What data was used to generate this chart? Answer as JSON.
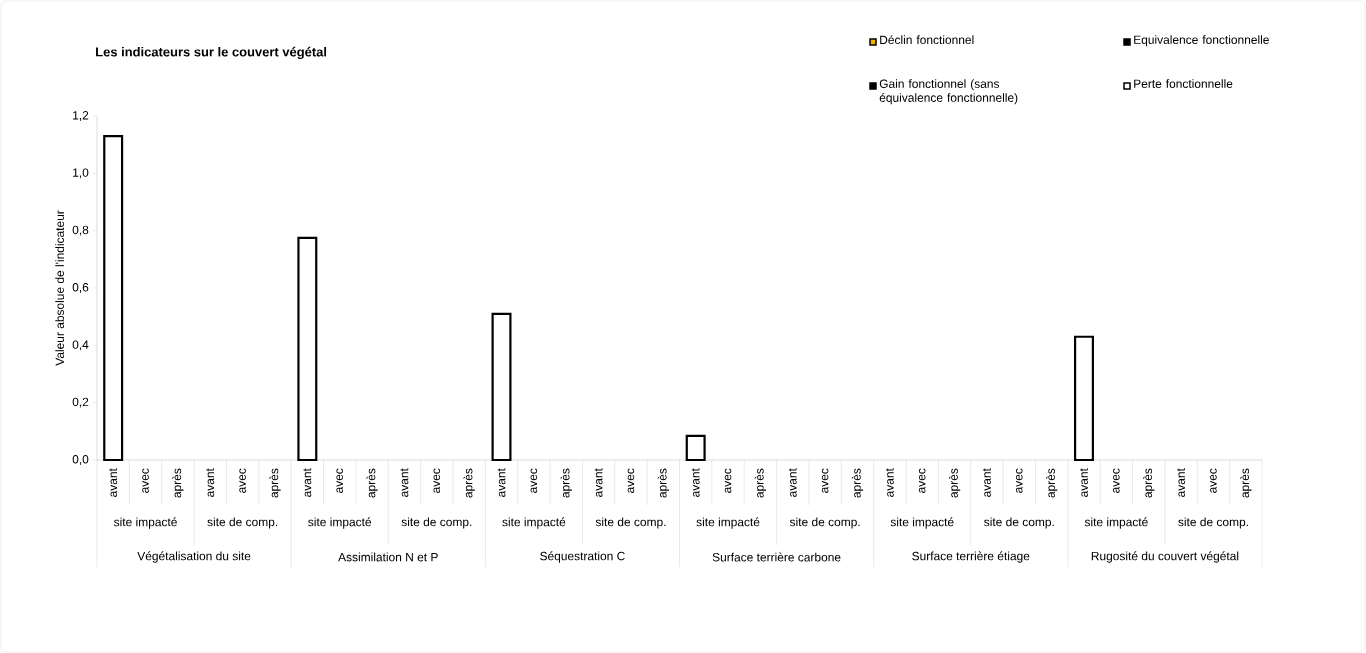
{
  "chart_data": {
    "type": "bar",
    "title": "Les indicateurs sur le couvert végétal",
    "ylabel": "Valeur absolue de l'indicateur",
    "categories": [
      "avant",
      "avec",
      "après",
      "avant",
      "avec",
      "après",
      "avant",
      "avec",
      "après",
      "avant",
      "avec",
      "après",
      "avant",
      "avec",
      "après",
      "avant",
      "avec",
      "après",
      "avant",
      "avec",
      "après",
      "avant",
      "avec",
      "après",
      "avant",
      "avec",
      "après",
      "avant",
      "avec",
      "après",
      "avant",
      "avec",
      "après",
      "avant",
      "avec",
      "après"
    ],
    "annotations": [
      "site impacté",
      "site de comp.",
      "site impacté",
      "site de comp.",
      "site impacté",
      "site de comp.",
      "site impacté",
      "site de comp.",
      "site impacté",
      "site de comp.",
      "site impacté",
      "site de comp.",
      "Végétalisation du site",
      "Assimilation N et P",
      "Séquestration C",
      "Surface terrière carbone",
      "Surface terrière étiage",
      "Rugosité du couvert végétal"
    ],
    "series": [
      {
        "name": "Déclin fonctionnel",
        "color": "#f0b400",
        "values": [
          null,
          null,
          null,
          null,
          null,
          null,
          null,
          null,
          null,
          null,
          null,
          null,
          null,
          null,
          null,
          null,
          null,
          null,
          null,
          null,
          null,
          null,
          null,
          null,
          null,
          null,
          null,
          null,
          null,
          null,
          null,
          null,
          null,
          null,
          null,
          null
        ]
      },
      {
        "name": "Equivalence fonctionnelle",
        "color": "#000000",
        "values": [
          null,
          null,
          null,
          null,
          null,
          null,
          null,
          null,
          null,
          null,
          null,
          null,
          null,
          null,
          null,
          null,
          null,
          null,
          null,
          null,
          null,
          null,
          null,
          null,
          null,
          null,
          null,
          null,
          null,
          null,
          null,
          null,
          null,
          null,
          null,
          null
        ]
      },
      {
        "name": "Gain fonctionnel (sans équivalence fonctionnelle)",
        "color": "#000000",
        "values": [
          null,
          null,
          null,
          null,
          null,
          null,
          null,
          null,
          null,
          null,
          null,
          null,
          null,
          null,
          null,
          null,
          null,
          null,
          null,
          null,
          null,
          null,
          null,
          null,
          null,
          null,
          null,
          null,
          null,
          null,
          null,
          null,
          null,
          null,
          null,
          null
        ]
      },
      {
        "name": "Perte fonctionnelle",
        "color": "#ffffff",
        "values": [
          1.13,
          null,
          null,
          null,
          null,
          null,
          0.775,
          null,
          null,
          null,
          null,
          null,
          0.51,
          null,
          null,
          null,
          null,
          null,
          0.084,
          null,
          null,
          null,
          null,
          null,
          null,
          null,
          null,
          null,
          null,
          null,
          0.43,
          null,
          null,
          null,
          null,
          null
        ]
      }
    ],
    "ylim": [
      0,
      1.2
    ],
    "yticks": [
      {
        "value": 0,
        "label": "0,0"
      },
      {
        "value": 0.2,
        "label": "0,2"
      },
      {
        "value": 0.4,
        "label": "0,4"
      },
      {
        "value": 0.6,
        "label": "0,6"
      },
      {
        "value": 0.8,
        "label": "0,8"
      },
      {
        "value": 1.0,
        "label": "1,0"
      },
      {
        "value": 1.2,
        "label": "1,2"
      }
    ],
    "grid": false,
    "legend": "top right"
  }
}
